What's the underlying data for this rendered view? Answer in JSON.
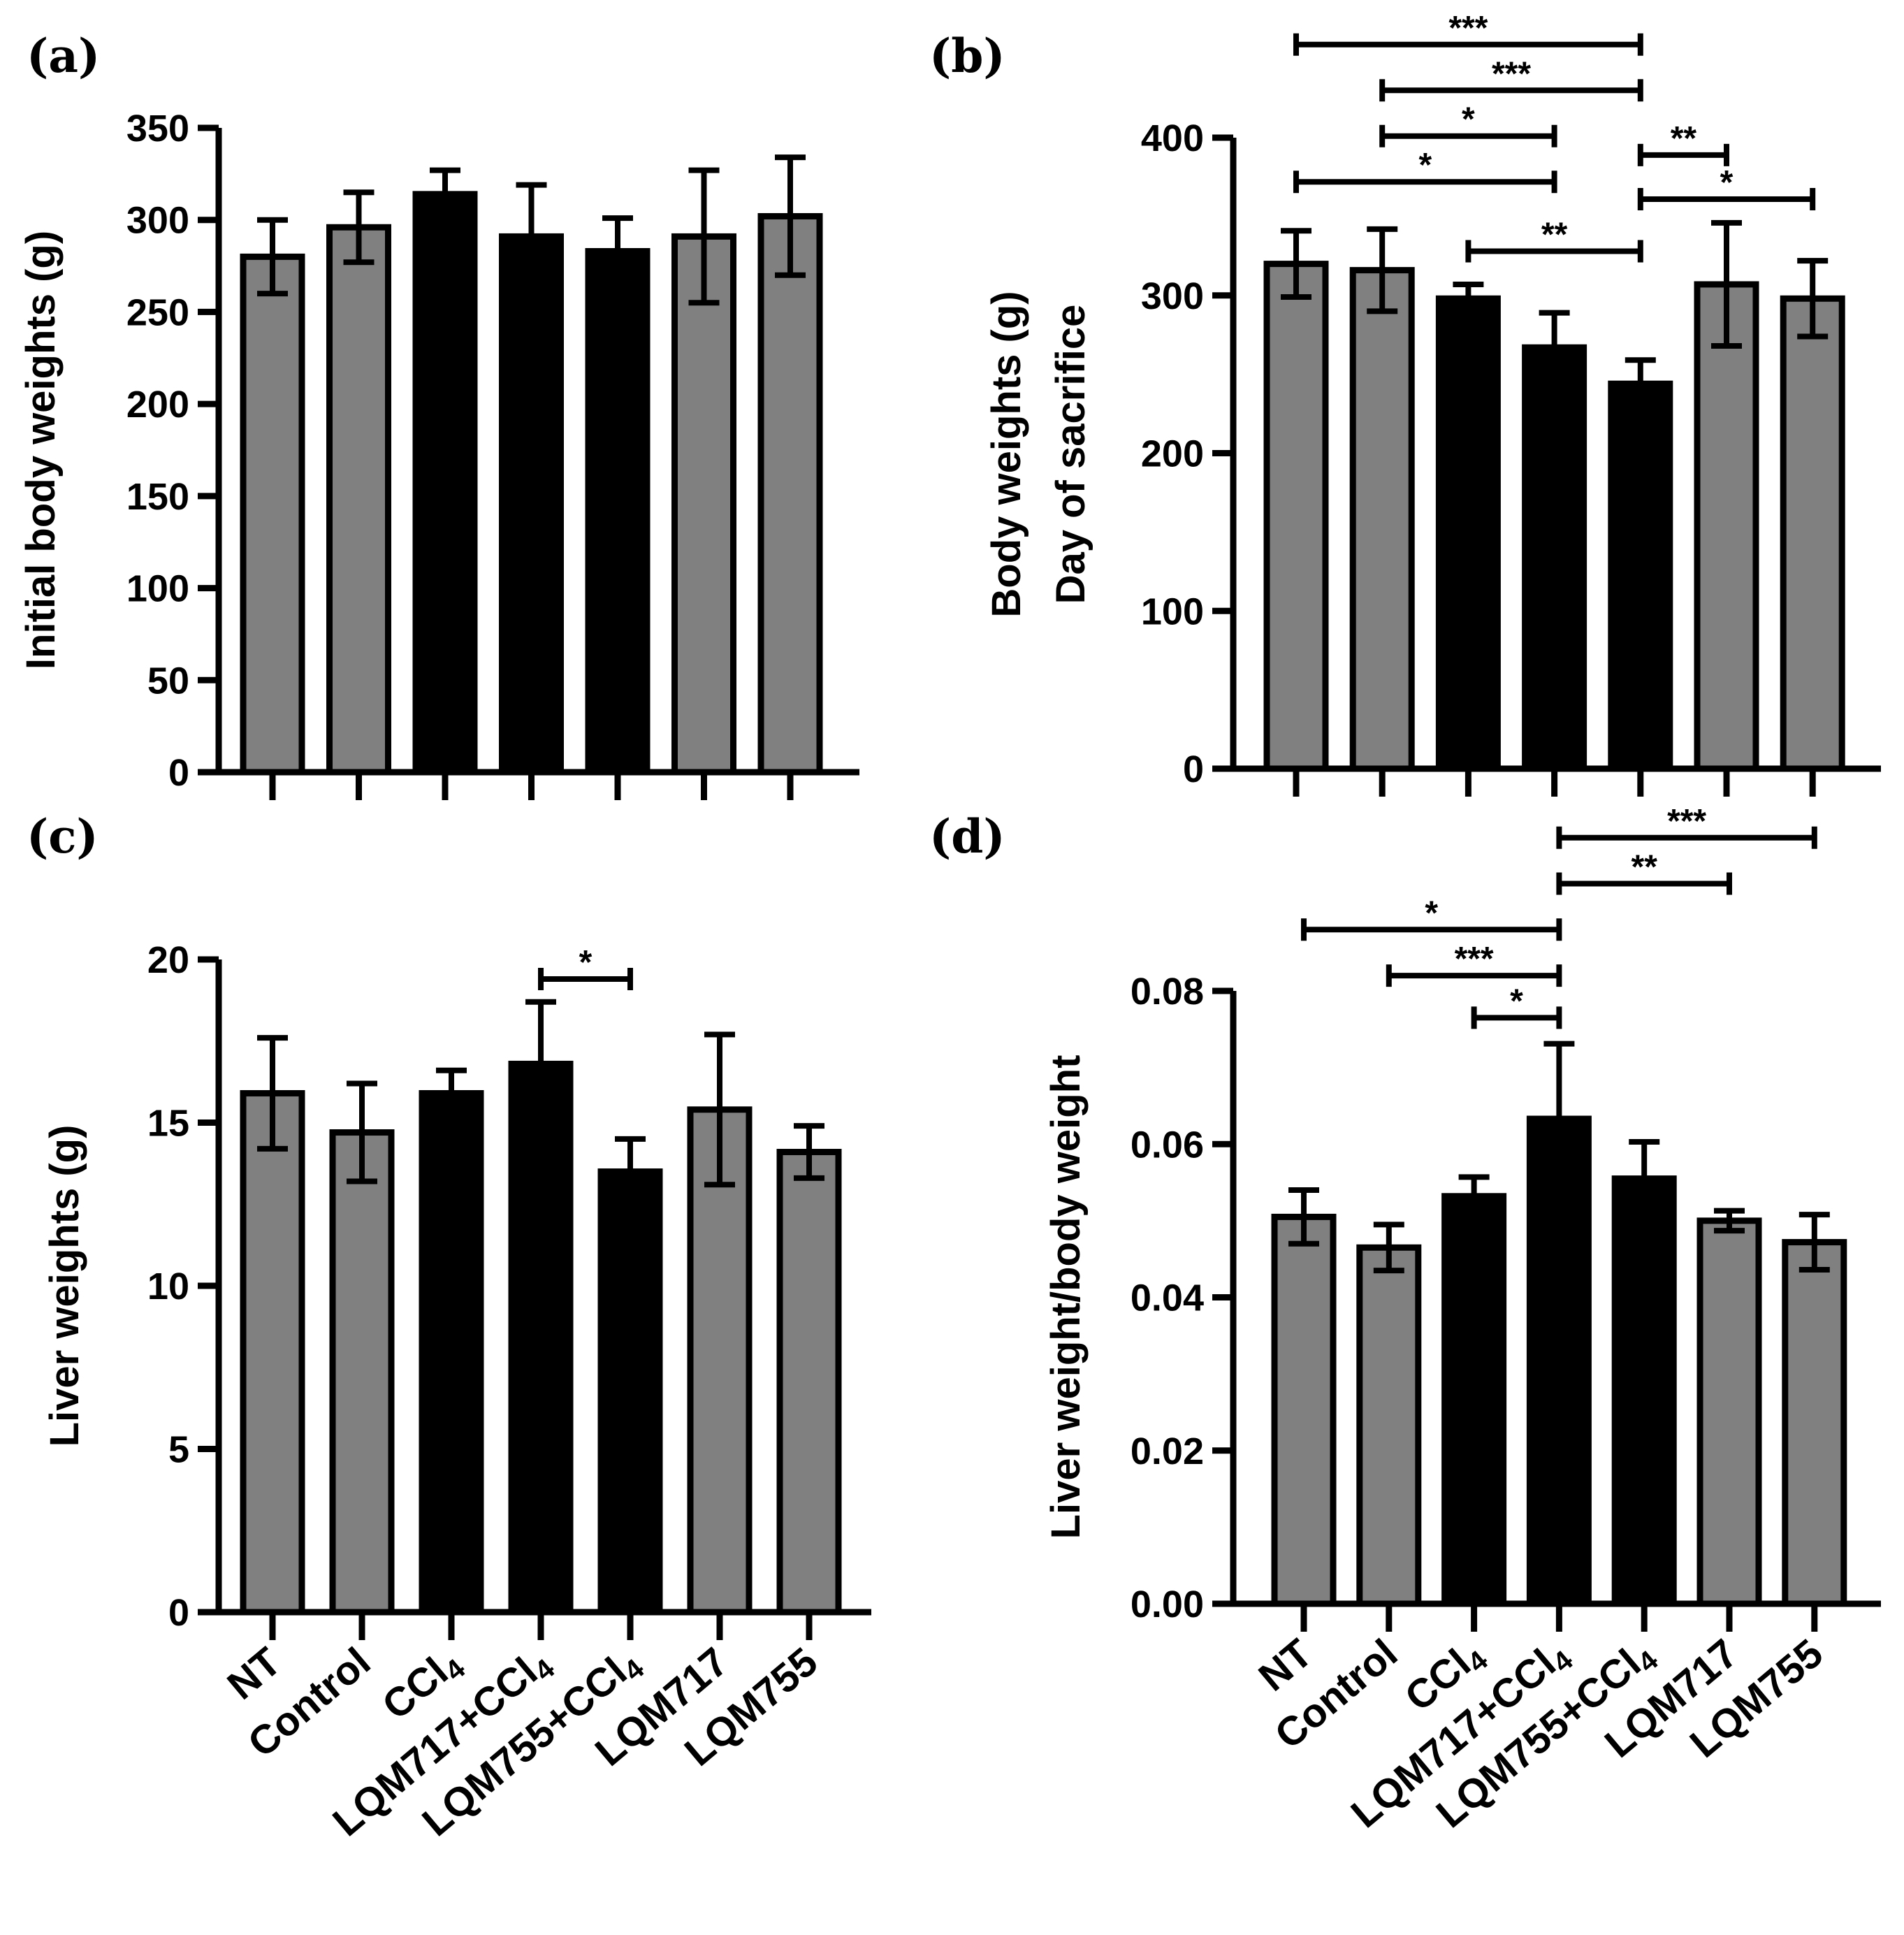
{
  "colors": {
    "gray_bar": "#808080",
    "black_bar": "#000000",
    "stroke": "#000000"
  },
  "chart_data": [
    {
      "type": "bar",
      "panel": "(a)",
      "title": "",
      "xlabel": "",
      "ylabel": "Initial body weights (g)",
      "ylim": [
        0,
        350
      ],
      "yticks": [
        0,
        50,
        100,
        150,
        200,
        250,
        300,
        350
      ],
      "categories": [
        "NT",
        "Control",
        "CCl4",
        "LQM717+CCl4",
        "LQM755+CCl4",
        "LQM717",
        "LQM755"
      ],
      "show_category_labels": false,
      "values": [
        280,
        296,
        314,
        291,
        283,
        291,
        302
      ],
      "errors": [
        20,
        19,
        13,
        28,
        18,
        36,
        32
      ],
      "bar_colors": [
        "gray",
        "gray",
        "black",
        "black",
        "black",
        "gray",
        "gray"
      ],
      "significance": []
    },
    {
      "type": "bar",
      "panel": "(b)",
      "title": "",
      "xlabel": "",
      "ylabel": [
        "Body weights (g)",
        "Day of sacrifice"
      ],
      "ylim": [
        0,
        400
      ],
      "yticks": [
        0,
        100,
        200,
        300,
        400
      ],
      "categories": [
        "NT",
        "Control",
        "CCl4",
        "LQM717+CCl4",
        "LQM755+CCl4",
        "LQM717",
        "LQM755"
      ],
      "show_category_labels": false,
      "values": [
        320,
        316,
        298,
        267,
        244,
        307,
        298
      ],
      "errors": [
        21,
        26,
        9,
        22,
        15,
        39,
        24
      ],
      "bar_colors": [
        "gray",
        "gray",
        "black",
        "black",
        "black",
        "gray",
        "gray"
      ],
      "significance": [
        {
          "from": 0,
          "to": 4,
          "label": "***",
          "y": 459
        },
        {
          "from": 1,
          "to": 4,
          "label": "***",
          "y": 430
        },
        {
          "from": 1,
          "to": 3,
          "label": "*",
          "y": 401
        },
        {
          "from": 0,
          "to": 3,
          "label": "*",
          "y": 372
        },
        {
          "from": 2,
          "to": 4,
          "label": "**",
          "y": 328
        },
        {
          "from": 4,
          "to": 5,
          "label": "**",
          "y": 389
        },
        {
          "from": 4,
          "to": 6,
          "label": "*",
          "y": 361
        }
      ]
    },
    {
      "type": "bar",
      "panel": "(c)",
      "title": "",
      "xlabel": "",
      "ylabel": "Liver weights (g)",
      "ylim": [
        0,
        20
      ],
      "yticks": [
        0,
        5,
        10,
        15,
        20
      ],
      "categories": [
        "NT",
        "Control",
        "CCl4",
        "LQM717+CCl4",
        "LQM755+CCl4",
        "LQM717",
        "LQM755"
      ],
      "show_category_labels": true,
      "values": [
        15.9,
        14.7,
        15.9,
        16.8,
        13.5,
        15.4,
        14.1
      ],
      "errors": [
        1.7,
        1.5,
        0.7,
        1.9,
        1.0,
        2.3,
        0.8
      ],
      "bar_colors": [
        "gray",
        "gray",
        "black",
        "black",
        "black",
        "gray",
        "gray"
      ],
      "significance": [
        {
          "from": 3,
          "to": 4,
          "label": "*",
          "y": 19.4
        }
      ]
    },
    {
      "type": "bar",
      "panel": "(d)",
      "title": "",
      "xlabel": "",
      "ylabel": "Liver weight/body weight",
      "ylim": [
        0,
        0.08
      ],
      "yticks": [
        0.0,
        0.02,
        0.04,
        0.06,
        0.08
      ],
      "ytick_labels": [
        "0.00",
        "0.02",
        "0.04",
        "0.06",
        "0.08"
      ],
      "categories": [
        "NT",
        "Control",
        "CCl4",
        "LQM717+CCl4",
        "LQM755+CCl4",
        "LQM717",
        "LQM755"
      ],
      "show_category_labels": true,
      "values": [
        0.0505,
        0.0465,
        0.0532,
        0.0633,
        0.0555,
        0.05,
        0.0472
      ],
      "errors": [
        0.0035,
        0.003,
        0.0025,
        0.0098,
        0.0048,
        0.0013,
        0.0036
      ],
      "bar_colors": [
        "gray",
        "gray",
        "black",
        "black",
        "black",
        "gray",
        "gray"
      ],
      "significance": [
        {
          "from": 3,
          "to": 6,
          "label": "***",
          "y": 0.1
        },
        {
          "from": 3,
          "to": 5,
          "label": "**",
          "y": 0.094
        },
        {
          "from": 0,
          "to": 3,
          "label": "*",
          "y": 0.088
        },
        {
          "from": 1,
          "to": 3,
          "label": "***",
          "y": 0.082
        },
        {
          "from": 2,
          "to": 3,
          "label": "*",
          "y": 0.0765
        }
      ]
    }
  ]
}
